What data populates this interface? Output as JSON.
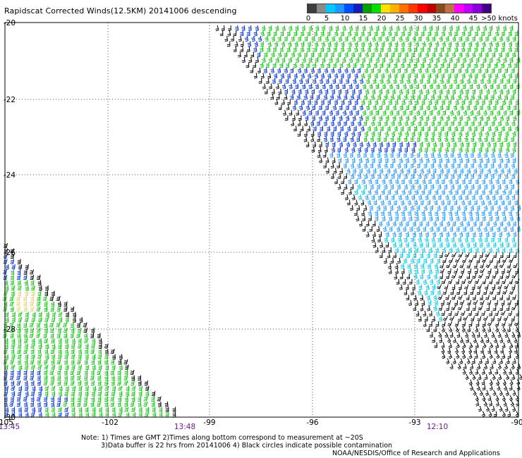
{
  "title": "Rapidscat Corrected Winds(12.5KM) 20141006 descending",
  "legend": {
    "colors": [
      "#3d3d3d",
      "#8a8a8a",
      "#00c8ff",
      "#1e96ff",
      "#0050ff",
      "#1a1ab8",
      "#00a000",
      "#00e000",
      "#ffe000",
      "#ffb000",
      "#ff7000",
      "#ff3800",
      "#ff0000",
      "#c00000",
      "#8a4a20",
      "#c07048",
      "#ff00ff",
      "#c000ff",
      "#8a00d8",
      "#400080"
    ],
    "labels": [
      "0",
      "5",
      "10",
      "15",
      "20",
      "25",
      "30",
      "35",
      "40",
      "45",
      ">50 knots"
    ]
  },
  "axes": {
    "lat_labels": [
      "-20",
      "-22",
      "-24",
      "-26",
      "-28",
      "-30"
    ],
    "lon_labels": [
      "-105",
      "-102",
      "-99",
      "-96",
      "-93",
      "-90"
    ]
  },
  "times": [
    "13:45",
    "13:48",
    "12:10"
  ],
  "notes": [
    "Note: 1) Times are GMT 2)Times along bottom correspond to measurement at ~20S",
    "3)Data buffer is 22 hrs from 20141006 4) Black circles indicate possible contamination",
    "NOAA/NESDIS/Office of Research and Applications"
  ],
  "wind_colors": {
    "black": "#000000",
    "cyan": "#00c8e8",
    "light_blue": "#1e96ff",
    "blue": "#0030d0",
    "green": "#10c010",
    "yellow": "#e8d070"
  }
}
